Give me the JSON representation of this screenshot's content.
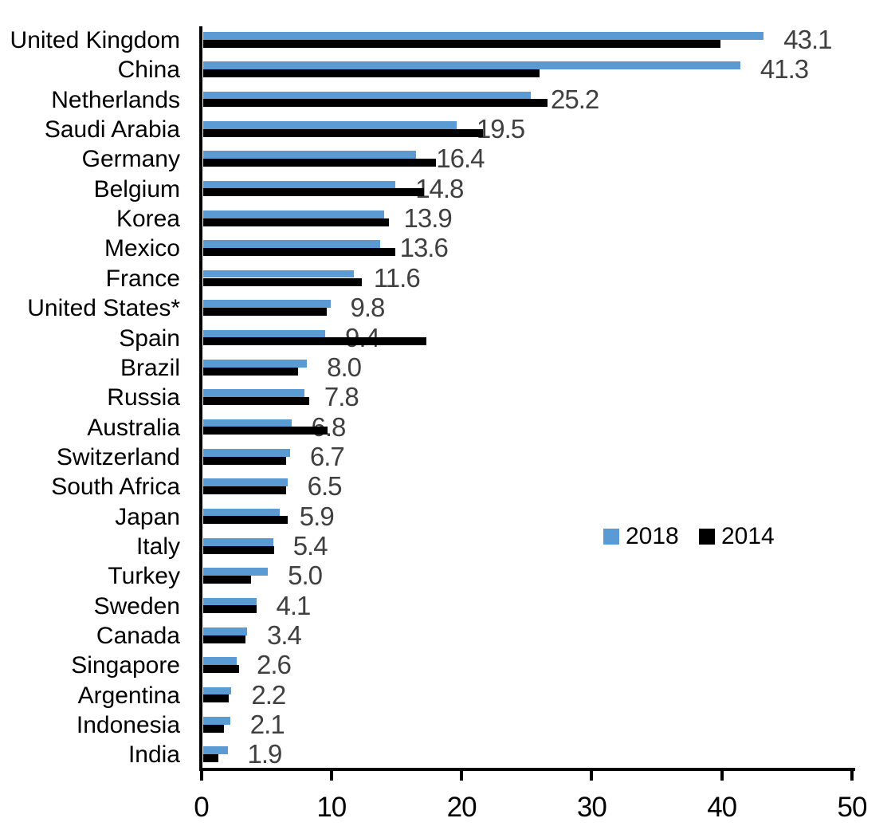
{
  "chart_data": {
    "type": "bar",
    "orientation": "horizontal",
    "title": "",
    "xlabel": "",
    "ylabel": "",
    "categories": [
      "United Kingdom",
      "China",
      "Netherlands",
      "Saudi Arabia",
      "Germany",
      "Belgium",
      "Korea",
      "Mexico",
      "France",
      "United States*",
      "Spain",
      "Brazil",
      "Russia",
      "Australia",
      "Switzerland",
      "South Africa",
      "Japan",
      "Italy",
      "Turkey",
      "Sweden",
      "Canada",
      "Singapore",
      "Argentina",
      "Indonesia",
      "India"
    ],
    "series": [
      {
        "name": "2018",
        "color": "#5B9BD5",
        "values": [
          43.1,
          41.3,
          25.2,
          19.5,
          16.4,
          14.8,
          13.9,
          13.6,
          11.6,
          9.8,
          9.4,
          8.0,
          7.8,
          6.8,
          6.7,
          6.5,
          5.9,
          5.4,
          5.0,
          4.1,
          3.4,
          2.6,
          2.2,
          2.1,
          1.9
        ]
      },
      {
        "name": "2014",
        "color": "#000000",
        "values": [
          39.8,
          25.9,
          26.5,
          21.5,
          17.9,
          17.0,
          14.3,
          14.8,
          12.2,
          9.5,
          17.2,
          7.3,
          8.2,
          9.6,
          6.4,
          6.4,
          6.5,
          5.5,
          3.7,
          4.1,
          3.3,
          2.8,
          2.0,
          1.6,
          1.2
        ]
      }
    ],
    "value_labels": [
      "43.1",
      "41.3",
      "25.2",
      "19.5",
      "16.4",
      "14.8",
      "13.9",
      "13.6",
      "11.6",
      "9.8",
      "9.4",
      "8.0",
      "7.8",
      "6.8",
      "6.7",
      "6.5",
      "5.9",
      "5.4",
      "5.0",
      "4.1",
      "3.4",
      "2.6",
      "2.2",
      "2.1",
      "1.9"
    ],
    "value_label_color": "#404040",
    "axis_color": "#000000",
    "xlim": [
      0,
      50
    ],
    "x_ticks": [
      "0",
      "10",
      "20",
      "30",
      "40",
      "50"
    ],
    "grid": false,
    "legend": {
      "position": "middle-right",
      "entries": [
        {
          "label": "2018",
          "color": "#5B9BD5"
        },
        {
          "label": "2014",
          "color": "#000000"
        }
      ]
    }
  }
}
